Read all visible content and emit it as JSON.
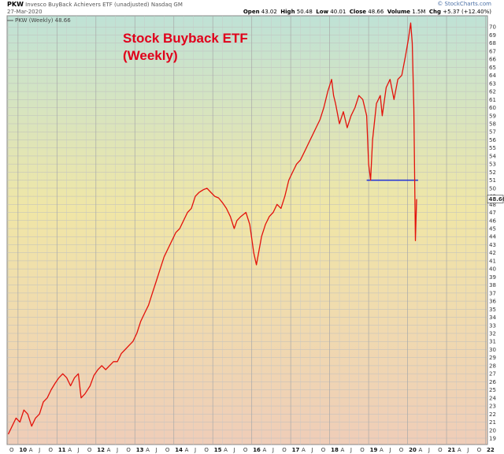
{
  "header": {
    "symbol": "PKW",
    "description": "Invesco BuyBack Achievers ETF (unadjusted) Nasdaq GM",
    "date": "27-Mar-2020",
    "brand": "© StockCharts.com",
    "open_label": "Open",
    "open": "43.02",
    "high_label": "High",
    "high": "50.48",
    "low_label": "Low",
    "low": "40.01",
    "close_label": "Close",
    "close": "48.66",
    "volume_label": "Volume",
    "volume": "1.5M",
    "chg_label": "Chg",
    "chg": "+5.37 (+12.40%)"
  },
  "legend": "PKW (Weekly) 48.66",
  "annotation": [
    "Stock Buyback ETF",
    "(Weekly)"
  ],
  "last_price_label": "48.66",
  "colors": {
    "line": "#e3120b",
    "support": "#1f2fd6",
    "annotation": "#e0001b",
    "bg_top": "#bfe2d6",
    "bg_mid": "#f0e6a6",
    "bg_bottom": "#efcdb8"
  },
  "chart_data": {
    "type": "line",
    "title": "Stock Buyback ETF (Weekly)",
    "ylim": [
      19,
      71
    ],
    "y_ticks": [
      19,
      20,
      21,
      22,
      23,
      24,
      25,
      26,
      27,
      28,
      29,
      30,
      31,
      32,
      33,
      34,
      35,
      36,
      37,
      38,
      39,
      40,
      41,
      42,
      43,
      44,
      45,
      46,
      47,
      48,
      49,
      50,
      51,
      52,
      53,
      54,
      55,
      56,
      57,
      58,
      59,
      60,
      61,
      62,
      63,
      64,
      65,
      66,
      67,
      68,
      69,
      70
    ],
    "x_tick_labels": [
      "O",
      "10",
      "A",
      "J",
      "O",
      "11",
      "A",
      "J",
      "O",
      "12",
      "A",
      "J",
      "O",
      "13",
      "A",
      "J",
      "O",
      "14",
      "A",
      "J",
      "O",
      "15",
      "A",
      "J",
      "O",
      "16",
      "A",
      "J",
      "O",
      "17",
      "A",
      "J",
      "O",
      "18",
      "A",
      "J",
      "O",
      "19",
      "A",
      "J",
      "O",
      "20",
      "A",
      "J",
      "O",
      "21",
      "A",
      "J",
      "O",
      "22"
    ],
    "x_year_labels": [
      "10",
      "11",
      "12",
      "13",
      "14",
      "15",
      "16",
      "17",
      "18",
      "19",
      "20",
      "21",
      "22"
    ],
    "series": [
      {
        "name": "PKW (Weekly)",
        "x": [
          2009.75,
          2009.85,
          2009.95,
          2010.05,
          2010.15,
          2010.25,
          2010.35,
          2010.45,
          2010.55,
          2010.65,
          2010.75,
          2010.85,
          2010.95,
          2011.05,
          2011.15,
          2011.25,
          2011.35,
          2011.45,
          2011.55,
          2011.62,
          2011.72,
          2011.85,
          2011.95,
          2012.05,
          2012.15,
          2012.25,
          2012.35,
          2012.45,
          2012.55,
          2012.65,
          2012.75,
          2012.85,
          2012.95,
          2013.05,
          2013.15,
          2013.25,
          2013.35,
          2013.45,
          2013.55,
          2013.65,
          2013.75,
          2013.85,
          2013.95,
          2014.05,
          2014.15,
          2014.25,
          2014.35,
          2014.45,
          2014.55,
          2014.65,
          2014.75,
          2014.85,
          2014.95,
          2015.05,
          2015.15,
          2015.25,
          2015.35,
          2015.45,
          2015.55,
          2015.62,
          2015.72,
          2015.85,
          2015.95,
          2016.05,
          2016.12,
          2016.25,
          2016.35,
          2016.45,
          2016.55,
          2016.65,
          2016.75,
          2016.85,
          2016.95,
          2017.05,
          2017.15,
          2017.25,
          2017.35,
          2017.45,
          2017.55,
          2017.65,
          2017.75,
          2017.85,
          2017.95,
          2018.05,
          2018.1,
          2018.15,
          2018.25,
          2018.35,
          2018.45,
          2018.55,
          2018.65,
          2018.75,
          2018.85,
          2018.95,
          2019.0,
          2019.05,
          2019.1,
          2019.2,
          2019.3,
          2019.35,
          2019.45,
          2019.55,
          2019.65,
          2019.75,
          2019.85,
          2019.95,
          2020.02,
          2020.08,
          2020.12,
          2020.16,
          2020.2,
          2020.23
        ],
        "values": [
          19.5,
          20.5,
          21.5,
          21.0,
          22.5,
          22.0,
          20.5,
          21.5,
          22.0,
          23.5,
          24.0,
          25.0,
          25.8,
          26.5,
          27.0,
          26.5,
          25.5,
          26.5,
          27.0,
          24.0,
          24.5,
          25.5,
          26.8,
          27.5,
          28.0,
          27.5,
          28.0,
          28.5,
          28.5,
          29.5,
          30.0,
          30.5,
          31.0,
          32.0,
          33.5,
          34.5,
          35.5,
          37.0,
          38.5,
          40.0,
          41.5,
          42.5,
          43.5,
          44.5,
          45.0,
          46.0,
          47.0,
          47.5,
          49.0,
          49.5,
          49.8,
          50.0,
          49.5,
          49.0,
          48.8,
          48.2,
          47.5,
          46.5,
          45.0,
          46.0,
          46.5,
          47.0,
          45.5,
          42.0,
          40.5,
          44.0,
          45.5,
          46.5,
          47.0,
          48.0,
          47.5,
          49.0,
          51.0,
          52.0,
          53.0,
          53.5,
          54.5,
          55.5,
          56.5,
          57.5,
          58.5,
          60.0,
          62.0,
          63.5,
          61.5,
          60.5,
          58.0,
          59.5,
          57.5,
          59.0,
          60.0,
          61.5,
          61.0,
          59.0,
          53.0,
          51.0,
          56.0,
          60.5,
          61.5,
          59.0,
          62.5,
          63.5,
          61.0,
          63.5,
          64.0,
          66.5,
          68.5,
          70.5,
          68.0,
          60.0,
          43.5,
          48.66
        ]
      }
    ],
    "support_line": 51.0,
    "grid": true
  }
}
